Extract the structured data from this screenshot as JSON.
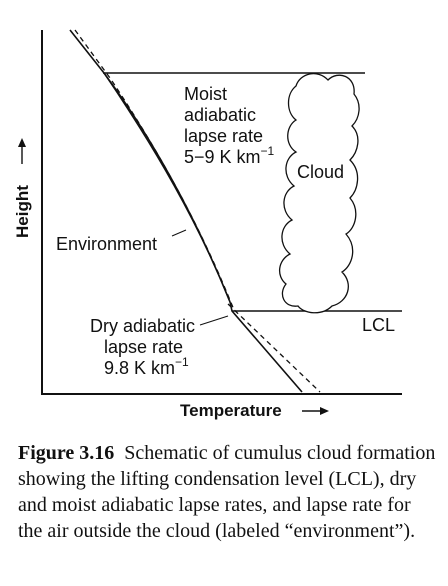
{
  "diagram": {
    "y_axis_label": "Height",
    "x_axis_label": "Temperature",
    "cloud_label": "Cloud",
    "lcl_label": "LCL",
    "environment_label": "Environment",
    "moist_label": {
      "line1": "Moist",
      "line2": "adiabatic",
      "line3": "lapse rate",
      "rate": "5−9 K km",
      "exp": "−1"
    },
    "dry_label": {
      "line1": "Dry adiabatic",
      "line2": "lapse rate",
      "rate": "9.8 K km",
      "exp": "−1"
    }
  },
  "caption": {
    "label": "Figure 3.16",
    "text": "Schematic of cumulus cloud formation showing the lifting condensation level (LCL), dry and moist adiabatic lapse rates, and lapse rate for the air outside the cloud (labeled “environment”)."
  }
}
